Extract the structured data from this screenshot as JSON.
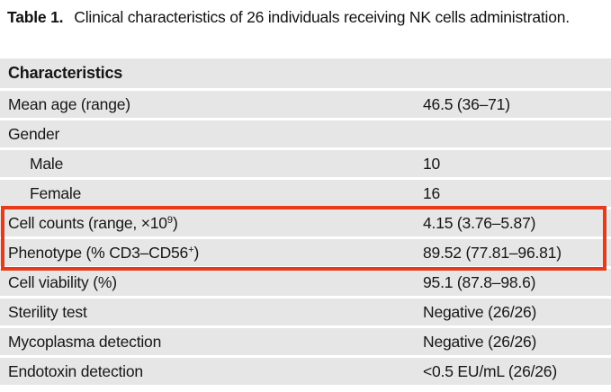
{
  "title": {
    "prefix": "Table 1.",
    "text": "Clinical characteristics of 26 individuals receiving NK cells administration."
  },
  "table": {
    "header": "Characteristics",
    "rows": [
      {
        "label": "Mean age (range)",
        "value": "46.5 (36–71)"
      },
      {
        "label": "Gender",
        "value": ""
      },
      {
        "label": "Male",
        "value": "10",
        "indent": true
      },
      {
        "label": "Female",
        "value": "16",
        "indent": true
      },
      {
        "label": "Cell counts (range, ×10",
        "sup": "9",
        "label_end": ")",
        "value": "4.15 (3.76–5.87)",
        "highlighted": true
      },
      {
        "label": "Phenotype (% CD3–CD56",
        "sup": "+",
        "label_end": ")",
        "value": "89.52 (77.81–96.81)",
        "highlighted": true
      },
      {
        "label": "Cell viability (%)",
        "value": "95.1 (87.8–98.6)"
      },
      {
        "label": "Sterility test",
        "value": "Negative (26/26)"
      },
      {
        "label": "Mycoplasma detection",
        "value": "Negative (26/26)"
      },
      {
        "label": "Endotoxin detection",
        "value": "<0.5 EU/mL (26/26)"
      }
    ]
  },
  "annotation": {
    "type": "highlight-box",
    "color": "#e73b1c"
  },
  "colors": {
    "row_background": "#e6e6e6",
    "text": "#161616"
  }
}
